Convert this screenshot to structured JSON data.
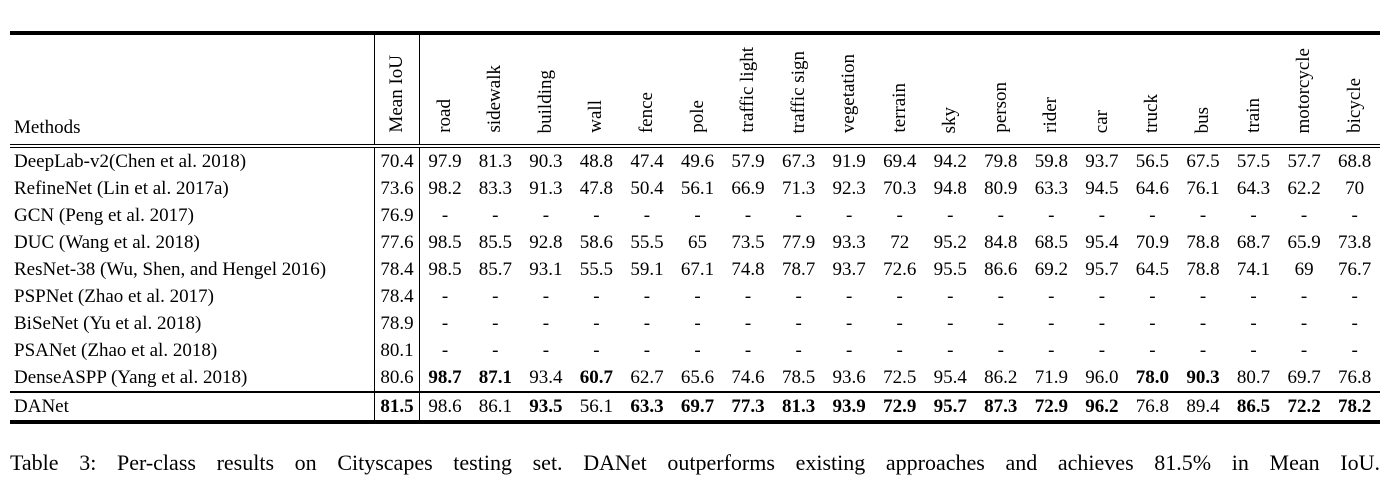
{
  "colors": {
    "background": "#ffffff",
    "text": "#000000",
    "rules": "#000000"
  },
  "table": {
    "methods_header": "Methods",
    "columns": [
      "Mean IoU",
      "road",
      "sidewalk",
      "building",
      "wall",
      "fence",
      "pole",
      "traffic light",
      "traffic sign",
      "vegetation",
      "terrain",
      "sky",
      "person",
      "rider",
      "car",
      "truck",
      "bus",
      "train",
      "motorcycle",
      "bicycle"
    ],
    "rows": [
      {
        "method": "DeepLab-v2(Chen et al. 2018)",
        "values": [
          "70.4",
          "97.9",
          "81.3",
          "90.3",
          "48.8",
          "47.4",
          "49.6",
          "57.9",
          "67.3",
          "91.9",
          "69.4",
          "94.2",
          "79.8",
          "59.8",
          "93.7",
          "56.5",
          "67.5",
          "57.5",
          "57.7",
          "68.8"
        ],
        "bold": []
      },
      {
        "method": "RefineNet (Lin et al. 2017a)",
        "values": [
          "73.6",
          "98.2",
          "83.3",
          "91.3",
          "47.8",
          "50.4",
          "56.1",
          "66.9",
          "71.3",
          "92.3",
          "70.3",
          "94.8",
          "80.9",
          "63.3",
          "94.5",
          "64.6",
          "76.1",
          "64.3",
          "62.2",
          "70"
        ],
        "bold": []
      },
      {
        "method": "GCN (Peng et al. 2017)",
        "values": [
          "76.9",
          "-",
          "-",
          "-",
          "-",
          "-",
          "-",
          "-",
          "-",
          "-",
          "-",
          "-",
          "-",
          "-",
          "-",
          "-",
          "-",
          "-",
          "-",
          "-"
        ],
        "bold": []
      },
      {
        "method": "DUC (Wang et al. 2018)",
        "values": [
          "77.6",
          "98.5",
          "85.5",
          "92.8",
          "58.6",
          "55.5",
          "65",
          "73.5",
          "77.9",
          "93.3",
          "72",
          "95.2",
          "84.8",
          "68.5",
          "95.4",
          "70.9",
          "78.8",
          "68.7",
          "65.9",
          "73.8"
        ],
        "bold": []
      },
      {
        "method": "ResNet-38 (Wu, Shen, and Hengel 2016)",
        "values": [
          "78.4",
          "98.5",
          "85.7",
          "93.1",
          "55.5",
          "59.1",
          "67.1",
          "74.8",
          "78.7",
          "93.7",
          "72.6",
          "95.5",
          "86.6",
          "69.2",
          "95.7",
          "64.5",
          "78.8",
          "74.1",
          "69",
          "76.7"
        ],
        "bold": []
      },
      {
        "method": "PSPNet (Zhao et al. 2017)",
        "values": [
          "78.4",
          "-",
          "-",
          "-",
          "-",
          "-",
          "-",
          "-",
          "-",
          "-",
          "-",
          "-",
          "-",
          "-",
          "-",
          "-",
          "-",
          "-",
          "-",
          "-"
        ],
        "bold": []
      },
      {
        "method": "BiSeNet (Yu et al. 2018)",
        "values": [
          "78.9",
          "-",
          "-",
          "-",
          "-",
          "-",
          "-",
          "-",
          "-",
          "-",
          "-",
          "-",
          "-",
          "-",
          "-",
          "-",
          "-",
          "-",
          "-",
          "-"
        ],
        "bold": []
      },
      {
        "method": "PSANet (Zhao et al. 2018)",
        "values": [
          "80.1",
          "-",
          "-",
          "-",
          "-",
          "-",
          "-",
          "-",
          "-",
          "-",
          "-",
          "-",
          "-",
          "-",
          "-",
          "-",
          "-",
          "-",
          "-",
          "-"
        ],
        "bold": []
      },
      {
        "method": "DenseASPP (Yang et al. 2018)",
        "values": [
          "80.6",
          "98.7",
          "87.1",
          "93.4",
          "60.7",
          "62.7",
          "65.6",
          "74.6",
          "78.5",
          "93.6",
          "72.5",
          "95.4",
          "86.2",
          "71.9",
          "96.0",
          "78.0",
          "90.3",
          "80.7",
          "69.7",
          "76.8"
        ],
        "bold": [
          1,
          2,
          4,
          15,
          16
        ]
      },
      {
        "method": "DANet",
        "values": [
          "81.5",
          "98.6",
          "86.1",
          "93.5",
          "56.1",
          "63.3",
          "69.7",
          "77.3",
          "81.3",
          "93.9",
          "72.9",
          "95.7",
          "87.3",
          "72.9",
          "96.2",
          "76.8",
          "89.4",
          "86.5",
          "72.2",
          "78.2"
        ],
        "bold": [
          0,
          3,
          5,
          6,
          7,
          8,
          9,
          10,
          11,
          12,
          13,
          14,
          17,
          18,
          19
        ]
      }
    ]
  },
  "caption": "Table 3: Per-class results on Cityscapes testing set. DANet outperforms existing approaches and achieves 81.5% in Mean IoU."
}
